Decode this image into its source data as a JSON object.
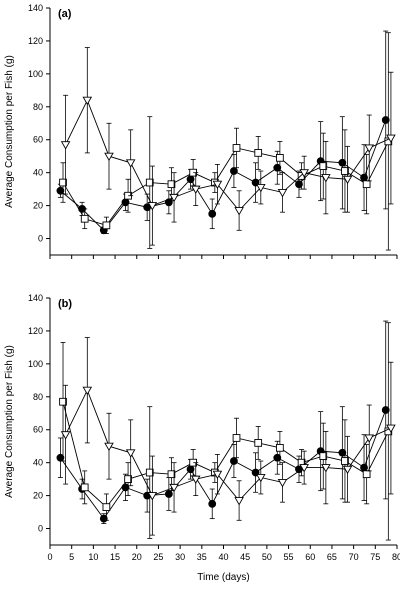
{
  "chart_data": [
    {
      "type": "line",
      "panel_label": "(a)",
      "ylabel": "Average Consumption per Fish (g)",
      "xlabel": "",
      "xlim": [
        0,
        80
      ],
      "ylim": [
        -10,
        140
      ],
      "yticks": [
        0,
        20,
        40,
        60,
        80,
        100,
        120,
        140
      ],
      "grid": false,
      "legend": "none",
      "series": [
        {
          "marker": "filled-circle",
          "points": [
            {
              "x": 3,
              "y": 29,
              "err": 4
            },
            {
              "x": 8,
              "y": 18,
              "err": 4
            },
            {
              "x": 13,
              "y": 5,
              "err": 2
            },
            {
              "x": 18,
              "y": 22,
              "err": 5
            },
            {
              "x": 23,
              "y": 19,
              "err": 8
            },
            {
              "x": 28,
              "y": 22,
              "err": 7
            },
            {
              "x": 33,
              "y": 36,
              "err": 6
            },
            {
              "x": 38,
              "y": 15,
              "err": 9
            },
            {
              "x": 43,
              "y": 41,
              "err": 10
            },
            {
              "x": 48,
              "y": 34,
              "err": 12
            },
            {
              "x": 53,
              "y": 43,
              "err": 10
            },
            {
              "x": 58,
              "y": 33,
              "err": 8
            },
            {
              "x": 63,
              "y": 47,
              "err": 24
            },
            {
              "x": 68,
              "y": 46,
              "err": 28
            },
            {
              "x": 73,
              "y": 37,
              "err": 20
            },
            {
              "x": 78,
              "y": 72,
              "err": 54
            }
          ]
        },
        {
          "marker": "open-square",
          "points": [
            {
              "x": 3,
              "y": 34,
              "err": 12
            },
            {
              "x": 8,
              "y": 12,
              "err": 6
            },
            {
              "x": 13,
              "y": 8,
              "err": 5
            },
            {
              "x": 18,
              "y": 26,
              "err": 10
            },
            {
              "x": 23,
              "y": 34,
              "err": 40
            },
            {
              "x": 28,
              "y": 33,
              "err": 10
            },
            {
              "x": 33,
              "y": 40,
              "err": 8
            },
            {
              "x": 38,
              "y": 34,
              "err": 6
            },
            {
              "x": 43,
              "y": 55,
              "err": 12
            },
            {
              "x": 48,
              "y": 52,
              "err": 10
            },
            {
              "x": 53,
              "y": 49,
              "err": 10
            },
            {
              "x": 58,
              "y": 38,
              "err": 8
            },
            {
              "x": 63,
              "y": 44,
              "err": 20
            },
            {
              "x": 68,
              "y": 41,
              "err": 25
            },
            {
              "x": 73,
              "y": 33,
              "err": 18
            },
            {
              "x": 78,
              "y": 59,
              "err": 66
            }
          ]
        },
        {
          "marker": "open-triangle-down",
          "points": [
            {
              "x": 3,
              "y": 57,
              "err": 30
            },
            {
              "x": 8,
              "y": 84,
              "err": 32
            },
            {
              "x": 13,
              "y": 50,
              "err": 20
            },
            {
              "x": 18,
              "y": 46,
              "err": 20
            },
            {
              "x": 23,
              "y": 20,
              "err": 24
            },
            {
              "x": 28,
              "y": 25,
              "err": 15
            },
            {
              "x": 33,
              "y": 30,
              "err": 10
            },
            {
              "x": 38,
              "y": 33,
              "err": 12
            },
            {
              "x": 43,
              "y": 17,
              "err": 12
            },
            {
              "x": 48,
              "y": 31,
              "err": 10
            },
            {
              "x": 53,
              "y": 28,
              "err": 12
            },
            {
              "x": 58,
              "y": 40,
              "err": 10
            },
            {
              "x": 63,
              "y": 37,
              "err": 22
            },
            {
              "x": 68,
              "y": 36,
              "err": 20
            },
            {
              "x": 73,
              "y": 55,
              "err": 20
            },
            {
              "x": 78,
              "y": 61,
              "err": 40
            }
          ]
        }
      ]
    },
    {
      "type": "line",
      "panel_label": "(b)",
      "ylabel": "Average Consumption per Fish (g)",
      "xlabel": "Time (days)",
      "xlim": [
        0,
        80
      ],
      "ylim": [
        -10,
        140
      ],
      "xticks": [
        0,
        5,
        10,
        15,
        20,
        25,
        30,
        35,
        40,
        45,
        50,
        55,
        60,
        65,
        70,
        75,
        80
      ],
      "yticks": [
        0,
        20,
        40,
        60,
        80,
        100,
        120,
        140
      ],
      "grid": false,
      "legend": "none",
      "series": [
        {
          "marker": "filled-circle",
          "points": [
            {
              "x": 3,
              "y": 43,
              "err": 12
            },
            {
              "x": 8,
              "y": 24,
              "err": 6
            },
            {
              "x": 13,
              "y": 6,
              "err": 3
            },
            {
              "x": 18,
              "y": 25,
              "err": 8
            },
            {
              "x": 23,
              "y": 20,
              "err": 10
            },
            {
              "x": 28,
              "y": 21,
              "err": 10
            },
            {
              "x": 33,
              "y": 36,
              "err": 6
            },
            {
              "x": 38,
              "y": 15,
              "err": 9
            },
            {
              "x": 43,
              "y": 41,
              "err": 10
            },
            {
              "x": 48,
              "y": 34,
              "err": 12
            },
            {
              "x": 53,
              "y": 43,
              "err": 10
            },
            {
              "x": 58,
              "y": 36,
              "err": 8
            },
            {
              "x": 63,
              "y": 47,
              "err": 24
            },
            {
              "x": 68,
              "y": 46,
              "err": 28
            },
            {
              "x": 73,
              "y": 37,
              "err": 20
            },
            {
              "x": 78,
              "y": 72,
              "err": 54
            }
          ]
        },
        {
          "marker": "open-square",
          "points": [
            {
              "x": 3,
              "y": 77,
              "err": 36
            },
            {
              "x": 8,
              "y": 25,
              "err": 10
            },
            {
              "x": 13,
              "y": 13,
              "err": 8
            },
            {
              "x": 18,
              "y": 30,
              "err": 10
            },
            {
              "x": 23,
              "y": 34,
              "err": 40
            },
            {
              "x": 28,
              "y": 33,
              "err": 10
            },
            {
              "x": 33,
              "y": 40,
              "err": 8
            },
            {
              "x": 38,
              "y": 34,
              "err": 6
            },
            {
              "x": 43,
              "y": 55,
              "err": 12
            },
            {
              "x": 48,
              "y": 52,
              "err": 10
            },
            {
              "x": 53,
              "y": 49,
              "err": 10
            },
            {
              "x": 58,
              "y": 40,
              "err": 8
            },
            {
              "x": 63,
              "y": 44,
              "err": 20
            },
            {
              "x": 68,
              "y": 41,
              "err": 25
            },
            {
              "x": 73,
              "y": 33,
              "err": 18
            },
            {
              "x": 78,
              "y": 59,
              "err": 66
            }
          ]
        },
        {
          "marker": "open-triangle-down",
          "points": [
            {
              "x": 3,
              "y": 57,
              "err": 30
            },
            {
              "x": 8,
              "y": 84,
              "err": 32
            },
            {
              "x": 13,
              "y": 50,
              "err": 20
            },
            {
              "x": 18,
              "y": 46,
              "err": 20
            },
            {
              "x": 23,
              "y": 20,
              "err": 24
            },
            {
              "x": 28,
              "y": 25,
              "err": 15
            },
            {
              "x": 33,
              "y": 30,
              "err": 10
            },
            {
              "x": 38,
              "y": 33,
              "err": 12
            },
            {
              "x": 43,
              "y": 17,
              "err": 12
            },
            {
              "x": 48,
              "y": 31,
              "err": 10
            },
            {
              "x": 53,
              "y": 28,
              "err": 12
            },
            {
              "x": 58,
              "y": 37,
              "err": 10
            },
            {
              "x": 63,
              "y": 37,
              "err": 22
            },
            {
              "x": 68,
              "y": 36,
              "err": 20
            },
            {
              "x": 73,
              "y": 55,
              "err": 20
            },
            {
              "x": 78,
              "y": 61,
              "err": 40
            }
          ]
        }
      ]
    }
  ]
}
